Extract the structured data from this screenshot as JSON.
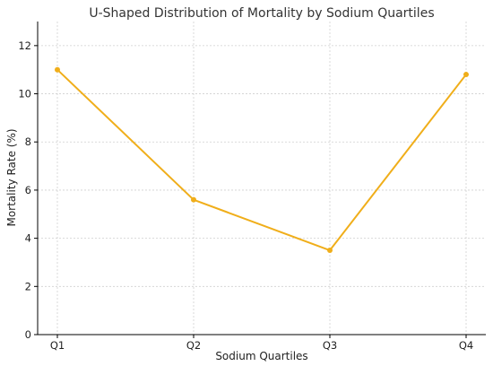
{
  "chart_data": {
    "type": "line",
    "title": "U-Shaped Distribution of Mortality by Sodium Quartiles",
    "xlabel": "Sodium Quartiles",
    "ylabel": "Mortality Rate (%)",
    "categories": [
      "Q1",
      "Q2",
      "Q3",
      "Q4"
    ],
    "series": [
      {
        "values": [
          11.0,
          5.6,
          3.5,
          10.8
        ],
        "color": "#f0ae1a"
      }
    ],
    "ylim": [
      0,
      13
    ],
    "yticks": [
      0,
      2,
      4,
      6,
      8,
      10,
      12
    ],
    "grid": true,
    "marker": "circle"
  }
}
